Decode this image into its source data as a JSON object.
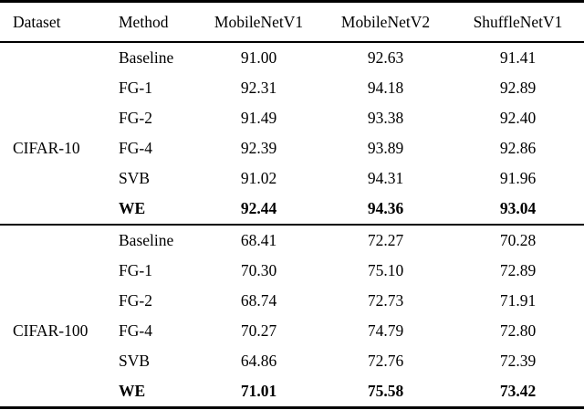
{
  "table": {
    "columns": [
      "Dataset",
      "Method",
      "MobileNetV1",
      "MobileNetV2",
      "ShuffleNetV1"
    ],
    "text_color": "#000000",
    "background_color": "#ffffff",
    "sections": [
      {
        "dataset": "CIFAR-10",
        "rows": [
          {
            "method": "Baseline",
            "values": [
              "91.00",
              "92.63",
              "91.41"
            ],
            "bold": false
          },
          {
            "method": "FG-1",
            "values": [
              "92.31",
              "94.18",
              "92.89"
            ],
            "bold": false
          },
          {
            "method": "FG-2",
            "values": [
              "91.49",
              "93.38",
              "92.40"
            ],
            "bold": false
          },
          {
            "method": "FG-4",
            "values": [
              "92.39",
              "93.89",
              "92.86"
            ],
            "bold": false
          },
          {
            "method": "SVB",
            "values": [
              "91.02",
              "94.31",
              "91.96"
            ],
            "bold": false
          },
          {
            "method": "WE",
            "values": [
              "92.44",
              "94.36",
              "93.04"
            ],
            "bold": true
          }
        ]
      },
      {
        "dataset": "CIFAR-100",
        "rows": [
          {
            "method": "Baseline",
            "values": [
              "68.41",
              "72.27",
              "70.28"
            ],
            "bold": false
          },
          {
            "method": "FG-1",
            "values": [
              "70.30",
              "75.10",
              "72.89"
            ],
            "bold": false
          },
          {
            "method": "FG-2",
            "values": [
              "68.74",
              "72.73",
              "71.91"
            ],
            "bold": false
          },
          {
            "method": "FG-4",
            "values": [
              "70.27",
              "74.79",
              "72.80"
            ],
            "bold": false
          },
          {
            "method": "SVB",
            "values": [
              "64.86",
              "72.76",
              "72.39"
            ],
            "bold": false
          },
          {
            "method": "WE",
            "values": [
              "71.01",
              "75.58",
              "73.42"
            ],
            "bold": true
          }
        ]
      }
    ]
  }
}
